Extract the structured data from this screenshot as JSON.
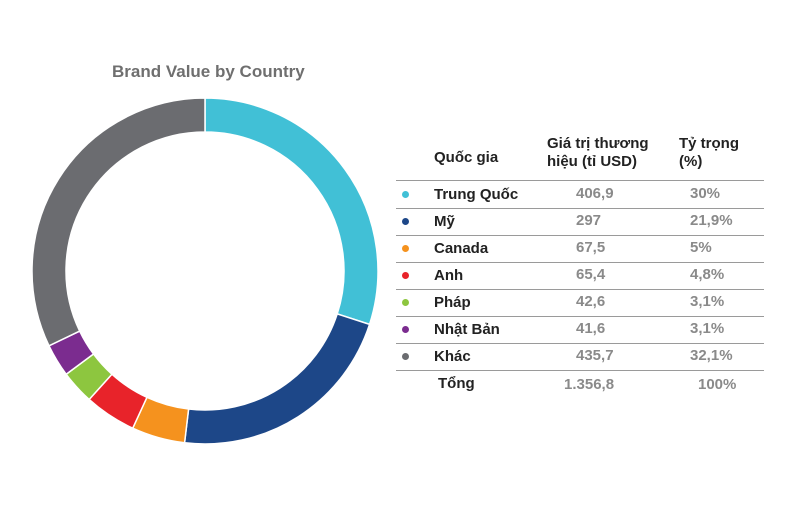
{
  "chart_data": {
    "type": "pie",
    "title": "Brand Value by Country",
    "columns": [
      "Quốc gia",
      "Giá trị thương\nhiệu (tỉ USD)",
      "Tỷ trọng\n(%)"
    ],
    "rows": [
      {
        "label": "Trung Quốc",
        "value": 406.9,
        "value_text": "406,9",
        "share": 30.0,
        "share_text": "30%",
        "color": "#41c0d6"
      },
      {
        "label": "Mỹ",
        "value": 297,
        "value_text": "297",
        "share": 21.9,
        "share_text": "21,9%",
        "color": "#1d4788"
      },
      {
        "label": "Canada",
        "value": 67.5,
        "value_text": "67,5",
        "share": 5.0,
        "share_text": "5%",
        "color": "#f5921e"
      },
      {
        "label": "Anh",
        "value": 65.4,
        "value_text": "65,4",
        "share": 4.8,
        "share_text": "4,8%",
        "color": "#e8232a"
      },
      {
        "label": "Pháp",
        "value": 42.6,
        "value_text": "42,6",
        "share": 3.1,
        "share_text": "3,1%",
        "color": "#8dc63f"
      },
      {
        "label": "Nhật Bản",
        "value": 41.6,
        "value_text": "41,6",
        "share": 3.1,
        "share_text": "3,1%",
        "color": "#7b2c8f"
      },
      {
        "label": "Khác",
        "value": 435.7,
        "value_text": "435,7",
        "share": 32.1,
        "share_text": "32,1%",
        "color": "#6b6c70"
      }
    ],
    "total": {
      "label": "Tổng",
      "value": 1356.8,
      "value_text": "1.356,8",
      "share_text": "100%"
    }
  }
}
